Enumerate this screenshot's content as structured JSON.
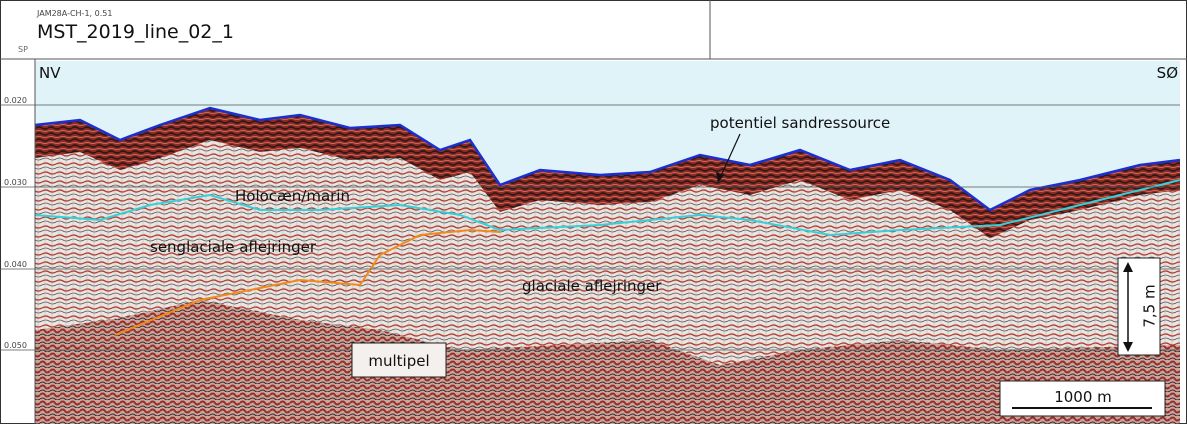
{
  "header": {
    "source": "JAM28A-CH-1, 0.51",
    "title": "MST_2019_line_02_1",
    "sp": "SP"
  },
  "profile": {
    "left_end": "NV",
    "right_end": "SØ",
    "time_ticks": [
      "0.020",
      "0.030",
      "0.040",
      "0.050"
    ],
    "annotations": {
      "resource": "potentiel sandressource",
      "holocene": "Holocæn/marin",
      "late_glacial": "senglaciale aflejringer",
      "glacial": "glaciale aflejringer",
      "multiple": "multipel"
    },
    "vertical_scale": "7,5 m",
    "horizontal_scale": "1000 m"
  }
}
